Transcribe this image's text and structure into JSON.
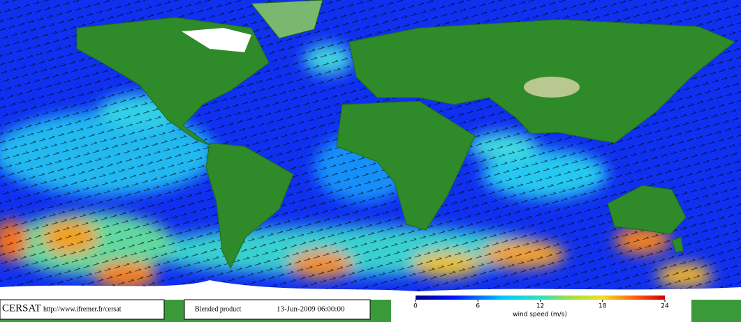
{
  "map": {
    "logo": "CERSAT",
    "url": "http://www.ifremer.fr/cersat",
    "product": "Blended product",
    "date": "13-Jun-2009 06:00:00"
  },
  "colorbar": {
    "lim": [
      0,
      24
    ],
    "ticks": [
      0,
      6,
      12,
      18,
      24
    ],
    "label": "wind speed (m/s)"
  }
}
